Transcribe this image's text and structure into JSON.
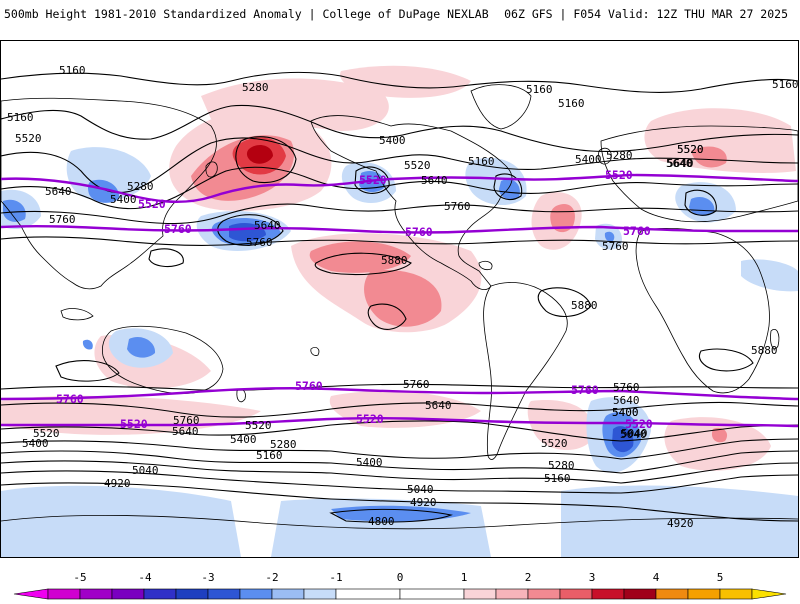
{
  "header": {
    "title": "500mb Height 1981-2010 Standardized Anomaly | College of DuPage NEXLAB",
    "run_info": "06Z GFS | F054 Valid: 12Z THU MAR 27 2025"
  },
  "colors": {
    "anom_neg5": "#8a00c8",
    "anom_neg4": "#3a3ae0",
    "anom_neg3": "#2e56d4",
    "anom_neg2": "#5b8ef0",
    "anom_neg1": "#c7dcf8",
    "anom_pos1": "#f9d4d8",
    "anom_pos2": "#f28a92",
    "anom_pos3": "#e23a44",
    "anom_pos4": "#b40010",
    "anom_pos5": "#f5a000",
    "highlight_contour": "#9400d3",
    "land_outline": "#000000"
  },
  "map": {
    "contour_labels": [
      {
        "id": "c1",
        "text": "5160"
      },
      {
        "id": "c2",
        "text": "5280"
      },
      {
        "id": "c3",
        "text": "5160"
      },
      {
        "id": "c4",
        "text": "5520"
      },
      {
        "id": "c5",
        "text": "5400"
      },
      {
        "id": "c6",
        "text": "5640"
      },
      {
        "id": "c7",
        "text": "5280"
      },
      {
        "id": "c8",
        "text": "5760"
      },
      {
        "id": "c9",
        "text": "5640"
      },
      {
        "id": "c10",
        "text": "5760"
      },
      {
        "id": "c11",
        "text": "5400"
      },
      {
        "id": "c12",
        "text": "5520"
      },
      {
        "id": "c13",
        "text": "5640"
      },
      {
        "id": "c14",
        "text": "5760"
      },
      {
        "id": "c15",
        "text": "5160"
      },
      {
        "id": "c16",
        "text": "5880"
      },
      {
        "id": "c17",
        "text": "5160"
      },
      {
        "id": "c18",
        "text": "5160"
      },
      {
        "id": "c19",
        "text": "5160"
      },
      {
        "id": "c20",
        "text": "5400"
      },
      {
        "id": "c21",
        "text": "5280"
      },
      {
        "id": "c22",
        "text": "5520"
      },
      {
        "id": "c23",
        "text": "5640"
      },
      {
        "id": "c24",
        "text": "5760"
      },
      {
        "id": "c25",
        "text": "5880"
      },
      {
        "id": "c26",
        "text": "5880"
      },
      {
        "id": "c27",
        "text": "5760"
      },
      {
        "id": "c28",
        "text": "5640"
      },
      {
        "id": "c29",
        "text": "5760"
      },
      {
        "id": "c30",
        "text": "5640"
      },
      {
        "id": "c31",
        "text": "5400"
      },
      {
        "id": "c32",
        "text": "5520"
      },
      {
        "id": "c33",
        "text": "5400"
      },
      {
        "id": "c34",
        "text": "5040"
      },
      {
        "id": "c35",
        "text": "5520"
      },
      {
        "id": "c36",
        "text": "5400"
      },
      {
        "id": "c37",
        "text": "5760"
      },
      {
        "id": "c38",
        "text": "5640"
      },
      {
        "id": "c39",
        "text": "5520"
      },
      {
        "id": "c40",
        "text": "5280"
      },
      {
        "id": "c41",
        "text": "5160"
      },
      {
        "id": "c42",
        "text": "5400"
      },
      {
        "id": "c43",
        "text": "5040"
      },
      {
        "id": "c44",
        "text": "4920"
      },
      {
        "id": "c45",
        "text": "5040"
      },
      {
        "id": "c46",
        "text": "4920"
      },
      {
        "id": "c47",
        "text": "4800"
      },
      {
        "id": "c48",
        "text": "5520"
      },
      {
        "id": "c49",
        "text": "5280"
      },
      {
        "id": "c50",
        "text": "5160"
      },
      {
        "id": "c51",
        "text": "5040"
      },
      {
        "id": "c52",
        "text": "4920"
      },
      {
        "id": "c53",
        "text": "5640"
      },
      {
        "id": "c54",
        "text": "5400"
      }
    ],
    "highlight_labels": [
      {
        "id": "h1",
        "text": "5520"
      },
      {
        "id": "h2",
        "text": "5760"
      },
      {
        "id": "h3",
        "text": "5520"
      },
      {
        "id": "h4",
        "text": "5760"
      },
      {
        "id": "h5",
        "text": "5520"
      },
      {
        "id": "h6",
        "text": "5760"
      },
      {
        "id": "h7",
        "text": "5760"
      },
      {
        "id": "h8",
        "text": "5760"
      },
      {
        "id": "h9",
        "text": "5760"
      },
      {
        "id": "h10",
        "text": "5520"
      },
      {
        "id": "h11",
        "text": "5520"
      },
      {
        "id": "h12",
        "text": "5520"
      }
    ]
  },
  "colorbar": {
    "ticks": [
      "-5",
      "-4",
      "-3",
      "-2",
      "-1",
      "0",
      "1",
      "2",
      "3",
      "4",
      "5"
    ]
  }
}
